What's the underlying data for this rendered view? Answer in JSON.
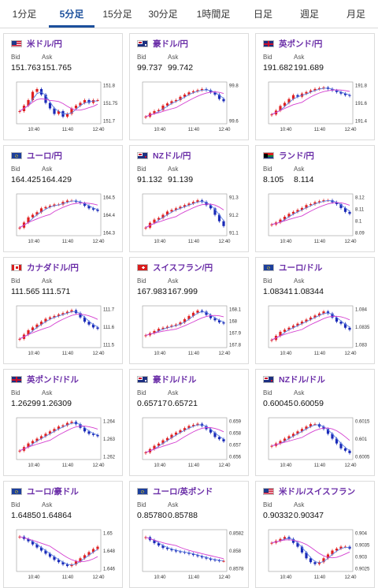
{
  "tabs": [
    {
      "label": "1分足",
      "active": false
    },
    {
      "label": "5分足",
      "active": true
    },
    {
      "label": "15分足",
      "active": false
    },
    {
      "label": "30分足",
      "active": false
    },
    {
      "label": "1時間足",
      "active": false
    },
    {
      "label": "日足",
      "active": false
    },
    {
      "label": "週足",
      "active": false
    },
    {
      "label": "月足",
      "active": false
    }
  ],
  "bid_label": "Bid",
  "ask_label": "Ask",
  "x_ticks": [
    "10:40",
    "11:40",
    "12:40"
  ],
  "colors": {
    "up": "#e02020",
    "down": "#1a2ab8",
    "ma_short": "#5a7ce0",
    "ma_long": "#d43fd0"
  },
  "pairs": [
    {
      "name": "米ドル/円",
      "bid": "151.763",
      "ask": "151.765",
      "flag": "us-flag",
      "yticks": [
        "151.8",
        "151.75",
        "151.7"
      ],
      "chart_data": {
        "type": "candlestick",
        "ylim": [
          151.68,
          151.82
        ],
        "values": [
          151.72,
          151.74,
          151.76,
          151.79,
          151.8,
          151.78,
          151.75,
          151.73,
          151.71,
          151.72,
          151.7,
          151.71,
          151.73,
          151.74,
          151.75,
          151.76,
          151.75,
          151.76,
          151.76
        ]
      }
    },
    {
      "name": "豪ドル/円",
      "bid": "99.737",
      "ask": "99.742",
      "flag": "au-flag",
      "yticks": [
        "99.8",
        "99.6"
      ],
      "chart_data": {
        "type": "candlestick",
        "ylim": [
          99.55,
          99.9
        ],
        "values": [
          99.6,
          99.63,
          99.65,
          99.66,
          99.7,
          99.72,
          99.74,
          99.75,
          99.78,
          99.8,
          99.82,
          99.83,
          99.84,
          99.85,
          99.84,
          99.82,
          99.8,
          99.76,
          99.74
        ]
      }
    },
    {
      "name": "英ポンド/円",
      "bid": "191.682",
      "ask": "191.689",
      "flag": "gb-flag",
      "yticks": [
        "191.8",
        "191.6",
        "191.4"
      ],
      "chart_data": {
        "type": "candlestick",
        "ylim": [
          191.35,
          191.85
        ],
        "values": [
          191.45,
          191.5,
          191.56,
          191.6,
          191.65,
          191.7,
          191.68,
          191.72,
          191.74,
          191.76,
          191.78,
          191.79,
          191.8,
          191.78,
          191.76,
          191.74,
          191.72,
          191.7,
          191.69
        ]
      }
    },
    {
      "name": "ユーロ/円",
      "bid": "164.425",
      "ask": "164.429",
      "flag": "eu-flag",
      "yticks": [
        "164.5",
        "164.4",
        "164.3"
      ],
      "chart_data": {
        "type": "candlestick",
        "ylim": [
          164.25,
          164.55
        ],
        "values": [
          164.3,
          164.34,
          164.38,
          164.4,
          164.42,
          164.45,
          164.46,
          164.47,
          164.48,
          164.48,
          164.5,
          164.51,
          164.51,
          164.5,
          164.49,
          164.47,
          164.45,
          164.44,
          164.43
        ]
      }
    },
    {
      "name": "NZドル/円",
      "bid": "91.132",
      "ask": "91.139",
      "flag": "nz-flag",
      "yticks": [
        "91.3",
        "91.2",
        "91.1"
      ],
      "chart_data": {
        "type": "candlestick",
        "ylim": [
          91.08,
          91.32
        ],
        "values": [
          91.12,
          91.15,
          91.17,
          91.18,
          91.2,
          91.22,
          91.23,
          91.24,
          91.25,
          91.26,
          91.27,
          91.28,
          91.29,
          91.28,
          91.26,
          91.24,
          91.2,
          91.16,
          91.13
        ]
      }
    },
    {
      "name": "ランド/円",
      "bid": "8.105",
      "ask": "8.114",
      "flag": "za-flag",
      "yticks": [
        "8.12",
        "8.11",
        "8.1",
        "8.09"
      ],
      "chart_data": {
        "type": "candlestick",
        "ylim": [
          8.085,
          8.125
        ],
        "values": [
          8.095,
          8.097,
          8.1,
          8.103,
          8.106,
          8.108,
          8.11,
          8.112,
          8.115,
          8.116,
          8.118,
          8.119,
          8.12,
          8.12,
          8.118,
          8.116,
          8.112,
          8.108,
          8.106
        ]
      }
    },
    {
      "name": "カナダドル/円",
      "bid": "111.565",
      "ask": "111.571",
      "flag": "ca-flag",
      "yticks": [
        "111.7",
        "111.6",
        "111.5"
      ],
      "chart_data": {
        "type": "candlestick",
        "ylim": [
          111.45,
          111.72
        ],
        "values": [
          111.5,
          111.53,
          111.56,
          111.58,
          111.6,
          111.62,
          111.64,
          111.65,
          111.66,
          111.67,
          111.68,
          111.69,
          111.7,
          111.68,
          111.65,
          111.62,
          111.6,
          111.58,
          111.57
        ]
      }
    },
    {
      "name": "スイスフラン/円",
      "bid": "167.983",
      "ask": "167.999",
      "flag": "ch-flag",
      "yticks": [
        "168.1",
        "168",
        "167.9",
        "167.8"
      ],
      "chart_data": {
        "type": "candlestick",
        "ylim": [
          167.78,
          168.14
        ],
        "values": [
          167.88,
          167.9,
          167.92,
          167.94,
          167.95,
          167.96,
          167.97,
          167.98,
          168.0,
          168.03,
          168.06,
          168.09,
          168.11,
          168.1,
          168.07,
          168.04,
          168.02,
          168.0,
          167.99
        ]
      }
    },
    {
      "name": "ユーロ/ドル",
      "bid": "1.08341",
      "ask": "1.08344",
      "flag": "eu-flag",
      "yticks": [
        "1.084",
        "1.0835",
        "1.083"
      ],
      "chart_data": {
        "type": "candlestick",
        "ylim": [
          1.0826,
          1.0845
        ],
        "values": [
          1.0829,
          1.0831,
          1.0833,
          1.0834,
          1.0835,
          1.0836,
          1.0837,
          1.0838,
          1.0839,
          1.084,
          1.0841,
          1.0842,
          1.0843,
          1.0842,
          1.084,
          1.0838,
          1.0837,
          1.0835,
          1.0834
        ]
      }
    },
    {
      "name": "英ポンド/ドル",
      "bid": "1.26299",
      "ask": "1.26309",
      "flag": "gb-flag",
      "yticks": [
        "1.264",
        "1.263",
        "1.262"
      ],
      "chart_data": {
        "type": "candlestick",
        "ylim": [
          1.2612,
          1.2644
        ],
        "values": [
          1.2618,
          1.2621,
          1.2624,
          1.2626,
          1.2628,
          1.263,
          1.2632,
          1.2634,
          1.2636,
          1.2638,
          1.2639,
          1.2641,
          1.2642,
          1.264,
          1.2637,
          1.2634,
          1.2632,
          1.2631,
          1.263
        ]
      }
    },
    {
      "name": "豪ドル/ドル",
      "bid": "0.65717",
      "ask": "0.65721",
      "flag": "au-flag",
      "yticks": [
        "0.659",
        "0.658",
        "0.657",
        "0.656"
      ],
      "chart_data": {
        "type": "candlestick",
        "ylim": [
          0.6557,
          0.6592
        ],
        "values": [
          0.6562,
          0.6565,
          0.6568,
          0.657,
          0.6573,
          0.6575,
          0.6578,
          0.658,
          0.6582,
          0.6584,
          0.6586,
          0.6587,
          0.6588,
          0.6586,
          0.6583,
          0.658,
          0.6576,
          0.6574,
          0.6572
        ]
      }
    },
    {
      "name": "NZドル/ドル",
      "bid": "0.60045",
      "ask": "0.60059",
      "flag": "nz-flag",
      "yticks": [
        "0.6015",
        "0.601",
        "0.6005"
      ],
      "chart_data": {
        "type": "candlestick",
        "ylim": [
          0.6002,
          0.6018
        ],
        "values": [
          0.6007,
          0.6008,
          0.6009,
          0.601,
          0.6011,
          0.6012,
          0.6013,
          0.6014,
          0.6015,
          0.6016,
          0.6016,
          0.6015,
          0.6014,
          0.6012,
          0.601,
          0.6008,
          0.6006,
          0.6005,
          0.6004
        ]
      }
    },
    {
      "name": "ユーロ/豪ドル",
      "bid": "1.64850",
      "ask": "1.64864",
      "flag": "eu-flag",
      "yticks": [
        "1.65",
        "1.648",
        "1.646"
      ],
      "chart_data": {
        "type": "candlestick",
        "ylim": [
          1.6455,
          1.6505
        ],
        "values": [
          1.6498,
          1.6495,
          1.6492,
          1.6488,
          1.6484,
          1.648,
          1.6476,
          1.6472,
          1.6468,
          1.6465,
          1.6462,
          1.646,
          1.6462,
          1.6466,
          1.647,
          1.6474,
          1.6478,
          1.6482,
          1.6485
        ]
      }
    },
    {
      "name": "ユーロ/英ポンド",
      "bid": "0.85780",
      "ask": "0.85788",
      "flag": "eu-flag",
      "yticks": [
        "0.8582",
        "0.858",
        "0.8578"
      ],
      "chart_data": {
        "type": "candlestick",
        "ylim": [
          0.85765,
          0.8583
        ],
        "values": [
          0.8582,
          0.85815,
          0.8581,
          0.85806,
          0.85802,
          0.858,
          0.85798,
          0.85796,
          0.85795,
          0.85794,
          0.85792,
          0.8579,
          0.85788,
          0.85786,
          0.85784,
          0.85782,
          0.85781,
          0.8578,
          0.8578
        ]
      }
    },
    {
      "name": "米ドル/スイスフラン",
      "bid": "0.90332",
      "ask": "0.90347",
      "flag": "us-flag",
      "yticks": [
        "0.904",
        "0.9035",
        "0.903",
        "0.9025"
      ],
      "chart_data": {
        "type": "candlestick",
        "ylim": [
          0.9022,
          0.9042
        ],
        "values": [
          0.9036,
          0.9037,
          0.9038,
          0.9039,
          0.9038,
          0.9036,
          0.9034,
          0.9031,
          0.9028,
          0.9026,
          0.9025,
          0.9026,
          0.9028,
          0.903,
          0.9032,
          0.9033,
          0.9034,
          0.9034,
          0.9033
        ]
      }
    }
  ]
}
